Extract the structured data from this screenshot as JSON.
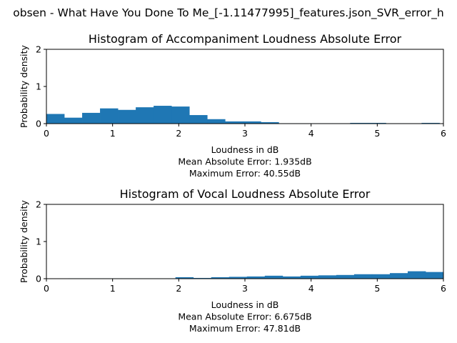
{
  "figure": {
    "suptitle": "obsen - What Have You Done To Me_[-1.11477995]_features.json_SVR_error_h"
  },
  "chart_data": [
    {
      "type": "bar",
      "title": "Histogram of Accompaniment Loudness Absolute Error",
      "xlabel_lines": [
        "Loudness in dB",
        "Mean Absolute Error: 1.935dB",
        "Maximum Error: 40.55dB"
      ],
      "ylabel": "Probability density",
      "xlim": [
        0,
        6
      ],
      "ylim": [
        0,
        2
      ],
      "xticks": [
        "0",
        "1",
        "2",
        "3",
        "4",
        "5",
        "6"
      ],
      "yticks": [
        "0",
        "1",
        "2"
      ],
      "bin_width": 0.27,
      "bins": [
        0.0,
        0.27,
        0.54,
        0.81,
        1.08,
        1.35,
        1.62,
        1.89,
        2.16,
        2.43,
        2.7,
        2.97,
        3.24,
        3.51,
        3.78,
        4.05,
        4.32,
        4.59,
        4.86,
        5.13,
        5.4,
        5.67
      ],
      "values": [
        0.26,
        0.16,
        0.29,
        0.41,
        0.37,
        0.44,
        0.48,
        0.46,
        0.23,
        0.12,
        0.06,
        0.06,
        0.04,
        0.01,
        0.01,
        0.01,
        0.01,
        0.02,
        0.02,
        0.01,
        0.01,
        0.02
      ],
      "color": "#1f77b4",
      "grid": false
    },
    {
      "type": "bar",
      "title": "Histogram of Vocal Loudness Absolute Error",
      "xlabel_lines": [
        "Loudness in dB",
        "Mean Absolute Error: 6.675dB",
        "Maximum Error: 47.81dB"
      ],
      "ylabel": "Probability density",
      "xlim": [
        0,
        6
      ],
      "ylim": [
        0,
        2
      ],
      "xticks": [
        "0",
        "1",
        "2",
        "3",
        "4",
        "5",
        "6"
      ],
      "yticks": [
        "0",
        "1",
        "2"
      ],
      "bin_width": 0.27,
      "bins": [
        0.33,
        0.6,
        0.87,
        1.14,
        1.41,
        1.68,
        1.95,
        2.22,
        2.49,
        2.76,
        3.03,
        3.3,
        3.57,
        3.84,
        4.11,
        4.38,
        4.65,
        4.92,
        5.19,
        5.46,
        5.73
      ],
      "values": [
        0.01,
        0.01,
        0.01,
        0.01,
        0.01,
        0.01,
        0.04,
        0.02,
        0.04,
        0.05,
        0.06,
        0.08,
        0.06,
        0.08,
        0.09,
        0.1,
        0.12,
        0.12,
        0.15,
        0.2,
        0.18
      ],
      "color": "#1f77b4",
      "grid": false
    }
  ]
}
